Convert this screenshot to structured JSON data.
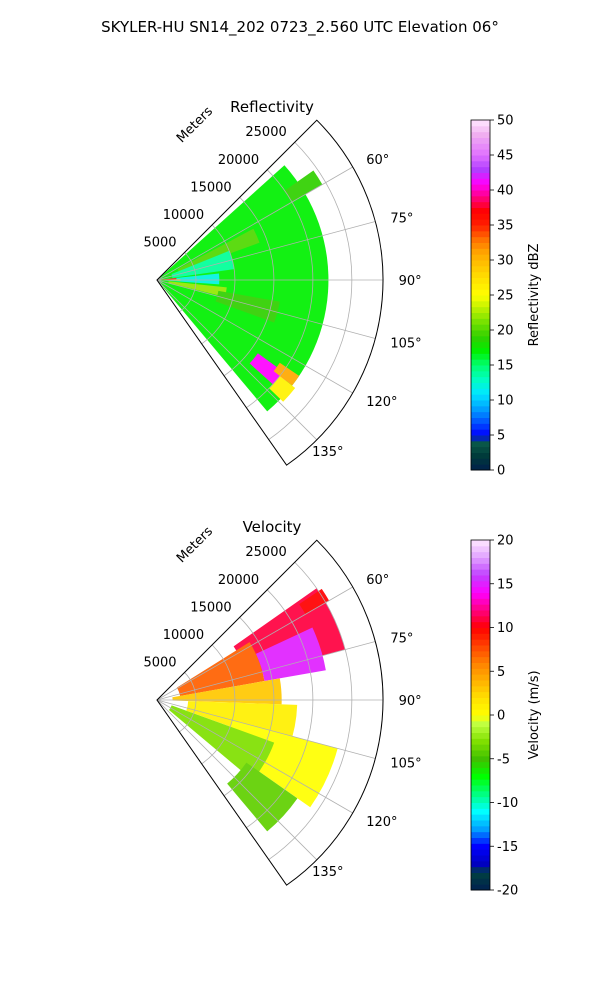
{
  "figure": {
    "title": "SKYLER-HU  SN14_202  0723_2.560 UTC Elevation 06°"
  },
  "chart_data": [
    {
      "type": "heatmap",
      "subtype": "polar-sector (PPI)",
      "title": "Reflectivity",
      "r_axis_label": "Meters",
      "r_ticks": [
        5000,
        10000,
        15000,
        20000,
        25000
      ],
      "r_tick_labels": [
        "5000",
        "10000",
        "15000",
        "20000",
        "25000"
      ],
      "r_lim": [
        0,
        29000
      ],
      "theta_ticks": [
        60,
        75,
        90,
        105,
        120,
        135
      ],
      "theta_tick_labels": [
        "60°",
        "75°",
        "90°",
        "105°",
        "120°",
        "135°"
      ],
      "theta_lim": [
        45,
        145
      ],
      "grid": true,
      "colorbar": {
        "label": "Reflectivity dBZ",
        "range": [
          0,
          50
        ],
        "ticks": [
          0,
          5,
          10,
          15,
          20,
          25,
          30,
          35,
          40,
          45,
          50
        ],
        "tick_labels": [
          "0",
          "5",
          "10",
          "15",
          "20",
          "25",
          "30",
          "35",
          "40",
          "45",
          "50"
        ],
        "colormap": "pyart_NWSRef"
      },
      "regions": [
        {
          "az": [
            48,
            140
          ],
          "r": [
            0,
            22000
          ],
          "value": 17
        },
        {
          "az": [
            62,
            70
          ],
          "r": [
            3000,
            14000
          ],
          "value": 20
        },
        {
          "az": [
            68,
            82
          ],
          "r": [
            2000,
            10000
          ],
          "value": 14
        },
        {
          "az": [
            84,
            94
          ],
          "r": [
            1000,
            8000
          ],
          "value": 12
        },
        {
          "az": [
            96,
            104
          ],
          "r": [
            1500,
            9000
          ],
          "value": 22
        },
        {
          "az": [
            100,
            110
          ],
          "r": [
            8000,
            16000
          ],
          "value": 19
        },
        {
          "az": [
            55,
            60
          ],
          "r": [
            20000,
            24500
          ],
          "value": 19
        },
        {
          "az": [
            84,
            88
          ],
          "r": [
            0,
            2500
          ],
          "value": 36
        },
        {
          "az": [
            88,
            92
          ],
          "r": [
            0,
            3000
          ],
          "value": 29
        },
        {
          "az": [
            126,
            132
          ],
          "r": [
            16000,
            21000
          ],
          "value": 41
        },
        {
          "az": [
            124,
            128
          ],
          "r": [
            19000,
            22000
          ],
          "value": 31
        },
        {
          "az": [
            128,
            134
          ],
          "r": [
            20000,
            22500
          ],
          "value": 26
        }
      ]
    },
    {
      "type": "heatmap",
      "subtype": "polar-sector (PPI)",
      "title": "Velocity",
      "r_axis_label": "Meters",
      "r_ticks": [
        5000,
        10000,
        15000,
        20000,
        25000
      ],
      "r_tick_labels": [
        "5000",
        "10000",
        "15000",
        "20000",
        "25000"
      ],
      "r_lim": [
        0,
        29000
      ],
      "theta_ticks": [
        60,
        75,
        90,
        105,
        120,
        135
      ],
      "theta_tick_labels": [
        "60°",
        "75°",
        "90°",
        "105°",
        "120°",
        "135°"
      ],
      "theta_lim": [
        45,
        145
      ],
      "grid": true,
      "colorbar": {
        "label": "Velocity (m/s)",
        "range": [
          -20,
          20
        ],
        "ticks": [
          -20,
          -15,
          -10,
          -5,
          0,
          5,
          10,
          15,
          20
        ],
        "tick_labels": [
          "-20",
          "-15",
          "-10",
          "-5",
          "0",
          "5",
          "10",
          "15",
          "20"
        ],
        "colormap": "pyart_NWSVel"
      },
      "regions": [
        {
          "az": [
            55,
            75
          ],
          "r": [
            12000,
            25000
          ],
          "value": 11
        },
        {
          "az": [
            65,
            80
          ],
          "r": [
            14000,
            22000
          ],
          "value": 15
        },
        {
          "az": [
            58,
            80
          ],
          "r": [
            3000,
            14000
          ],
          "value": 7
        },
        {
          "az": [
            80,
            92
          ],
          "r": [
            2000,
            16000
          ],
          "value": 3
        },
        {
          "az": [
            92,
            110
          ],
          "r": [
            4000,
            18000
          ],
          "value": 1
        },
        {
          "az": [
            105,
            125
          ],
          "r": [
            10000,
            24000
          ],
          "value": 0
        },
        {
          "az": [
            110,
            130
          ],
          "r": [
            2000,
            16000
          ],
          "value": -3
        },
        {
          "az": [
            125,
            140
          ],
          "r": [
            14000,
            22000
          ],
          "value": -4
        },
        {
          "az": [
            56,
            60
          ],
          "r": [
            22000,
            25500
          ],
          "value": 10
        }
      ]
    }
  ]
}
